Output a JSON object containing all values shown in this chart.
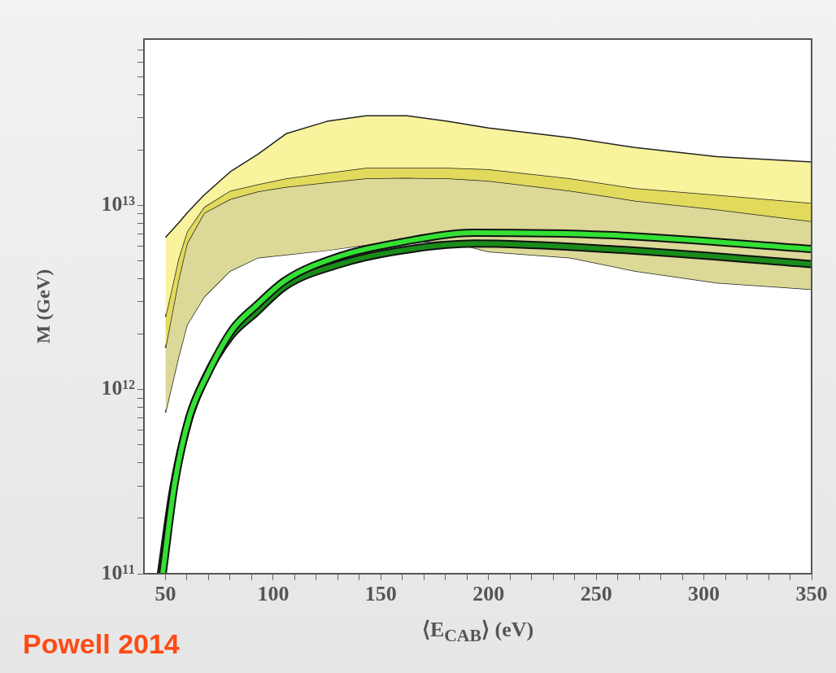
{
  "chart_data": {
    "type": "area",
    "xlabel": "⟨E$_{CAB}$⟩ (eV)",
    "ylabel": "M (GeV)",
    "log": "y",
    "xlim": [
      40,
      350
    ],
    "xticks": [
      50,
      {
        "value": 60,
        "label": null
      },
      {
        "value": 70,
        "label": null
      },
      {
        "value": 80,
        "label": null
      },
      {
        "value": 90,
        "label": null
      },
      100,
      {
        "value": 110,
        "label": null
      },
      {
        "value": 120,
        "label": null
      },
      {
        "value": 130,
        "label": null
      },
      {
        "value": 140,
        "label": null
      },
      150,
      {
        "value": 160,
        "label": null
      },
      {
        "value": 170,
        "label": null
      },
      {
        "value": 180,
        "label": null
      },
      {
        "value": 190,
        "label": null
      },
      200,
      {
        "value": 210,
        "label": null
      },
      {
        "value": 220,
        "label": null
      },
      {
        "value": 230,
        "label": null
      },
      {
        "value": 240,
        "label": null
      },
      250,
      {
        "value": 260,
        "label": null
      },
      {
        "value": 270,
        "label": null
      },
      {
        "value": 280,
        "label": null
      },
      {
        "value": 290,
        "label": null
      },
      300,
      {
        "value": 310,
        "label": null
      },
      {
        "value": 320,
        "label": null
      },
      {
        "value": 330,
        "label": null
      },
      {
        "value": 340,
        "label": null
      },
      350
    ],
    "ylim": [
      100000000000.0,
      80000000000000.0
    ],
    "yticks": [
      {
        "value": 100000000000.0,
        "label": "10¹¹"
      },
      {
        "value": 200000000000.0,
        "label": null
      },
      {
        "value": 300000000000.0,
        "label": null
      },
      {
        "value": 400000000000.0,
        "label": null
      },
      {
        "value": 500000000000.0,
        "label": null
      },
      {
        "value": 600000000000.0,
        "label": null
      },
      {
        "value": 700000000000.0,
        "label": null
      },
      {
        "value": 800000000000.0,
        "label": null
      },
      {
        "value": 900000000000.0,
        "label": null
      },
      {
        "value": 1000000000000.0,
        "label": "10¹²"
      },
      {
        "value": 2000000000000.0,
        "label": null
      },
      {
        "value": 3000000000000.0,
        "label": null
      },
      {
        "value": 4000000000000.0,
        "label": null
      },
      {
        "value": 5000000000000.0,
        "label": null
      },
      {
        "value": 6000000000000.0,
        "label": null
      },
      {
        "value": 7000000000000.0,
        "label": null
      },
      {
        "value": 8000000000000.0,
        "label": null
      },
      {
        "value": 9000000000000.0,
        "label": null
      },
      {
        "value": 10000000000000.0,
        "label": "10¹³"
      },
      {
        "value": 20000000000000.0,
        "label": null
      },
      {
        "value": 30000000000000.0,
        "label": null
      },
      {
        "value": 40000000000000.0,
        "label": null
      },
      {
        "value": 50000000000000.0,
        "label": null
      },
      {
        "value": 60000000000000.0,
        "label": null
      },
      {
        "value": 70000000000000.0,
        "label": null
      }
    ],
    "annotations": [
      "Powell 2014"
    ],
    "series": [
      {
        "type": "line",
        "color": "#222222",
        "x": [
          50,
          56,
          60,
          68,
          80,
          93,
          106,
          125,
          143,
          162,
          181,
          200,
          238,
          268,
          306,
          350
        ],
        "values": [
          750000000000.0,
          1490000000000.0,
          2240000000000.0,
          3190000000000.0,
          4400000000000.0,
          5200000000000.0,
          5400000000000.0,
          5700000000000.0,
          6100000000000.0,
          6300000000000.0,
          6400000000000.0,
          5600000000000.0,
          5200000000000.0,
          4400000000000.0,
          3800000000000.0,
          3500000000000.0
        ]
      },
      {
        "color": "#dcd897",
        "x": [
          50,
          56,
          60,
          68,
          80,
          93,
          106,
          125,
          143,
          162,
          181,
          200,
          238,
          268,
          306,
          350
        ],
        "values": [
          1680000000000.0,
          3900000000000.0,
          6200000000000.0,
          9100000000000.0,
          10800000000000.0,
          11900000000000.0,
          12600000000000.0,
          13300000000000.0,
          14000000000000.0,
          14100000000000.0,
          14000000000000.0,
          13600000000000.0,
          12000000000000.0,
          10600000000000.0,
          9500000000000.0,
          8200000000000.0
        ]
      },
      {
        "color": "#e2da5c",
        "x": [
          50,
          56,
          60,
          68,
          80,
          93,
          106,
          125,
          143,
          162,
          181,
          200,
          238,
          268,
          306,
          350
        ],
        "values": [
          2480000000000.0,
          5100000000000.0,
          7200000000000.0,
          9800000000000.0,
          12000000000000.0,
          13000000000000.0,
          14000000000000.0,
          15000000000000.0,
          16000000000000.0,
          16000000000000.0,
          16000000000000.0,
          15700000000000.0,
          14000000000000.0,
          12400000000000.0,
          11400000000000.0,
          10300000000000.0
        ]
      },
      {
        "color": "#f8f39c",
        "x": [
          50,
          56,
          60,
          68,
          80,
          93,
          106,
          125,
          143,
          162,
          181,
          200,
          238,
          268,
          306,
          350
        ],
        "values": [
          6700000000000.0,
          8000000000000.0,
          9100000000000.0,
          11400000000000.0,
          15200000000000.0,
          19000000000000.0,
          24500000000000.0,
          28600000000000.0,
          30700000000000.0,
          30700000000000.0,
          28600000000000.0,
          26300000000000.0,
          23300000000000.0,
          20600000000000.0,
          18400000000000.0,
          17200000000000.0
        ]
      },
      {
        "type": "line",
        "color": "#1a8c1a",
        "x": [
          47.9,
          53.6,
          60.4,
          67.9,
          80.4,
          91.7,
          105.7,
          131,
          155.9,
          193.6,
          255.5,
          350
        ],
        "values": [
          100000000000.0,
          290000000000.0,
          660000000000.0,
          1120000000000.0,
          1960000000000.0,
          2600000000000.0,
          3650000000000.0,
          4800000000000.0,
          5600000000000.0,
          6200000000000.0,
          5800000000000.0,
          4800000000000.0
        ]
      },
      {
        "type": "line",
        "color": "#33e033",
        "x": [
          48.7,
          54.3,
          61.1,
          69.2,
          81.1,
          92.5,
          105.7,
          131,
          155.9,
          193.6,
          255.5,
          350
        ],
        "values": [
          100000000000.0,
          310000000000.0,
          710000000000.0,
          1190000000000.0,
          2120000000000.0,
          2880000000000.0,
          3920000000000.0,
          5300000000000.0,
          6200000000000.0,
          7100000000000.0,
          6900000000000.0,
          5800000000000.0
        ]
      }
    ]
  }
}
